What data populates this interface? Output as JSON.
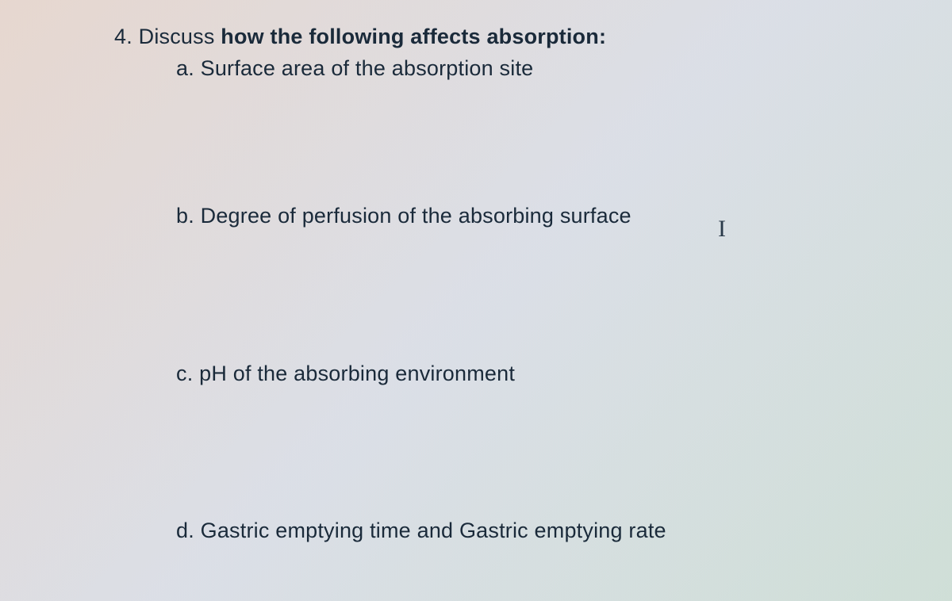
{
  "document": {
    "background_gradient": [
      "#e8d8d0",
      "#dce0e8",
      "#d0e0d8"
    ],
    "text_color": "#1a2a3a",
    "base_fontsize": 27,
    "font_family": "Arial",
    "question": {
      "number": "4.",
      "prefix": "Discuss",
      "bold_text": "how the following affects absorption:",
      "items": [
        {
          "label": "a.",
          "text": "Surface area of the absorption site"
        },
        {
          "label": "b.",
          "text": "Degree of perfusion of the absorbing surface"
        },
        {
          "label": "c.",
          "text": "pH of the absorbing environment"
        },
        {
          "label": "d.",
          "text": "Gastric emptying time and Gastric emptying rate"
        }
      ]
    },
    "cursor_glyph": "I"
  }
}
